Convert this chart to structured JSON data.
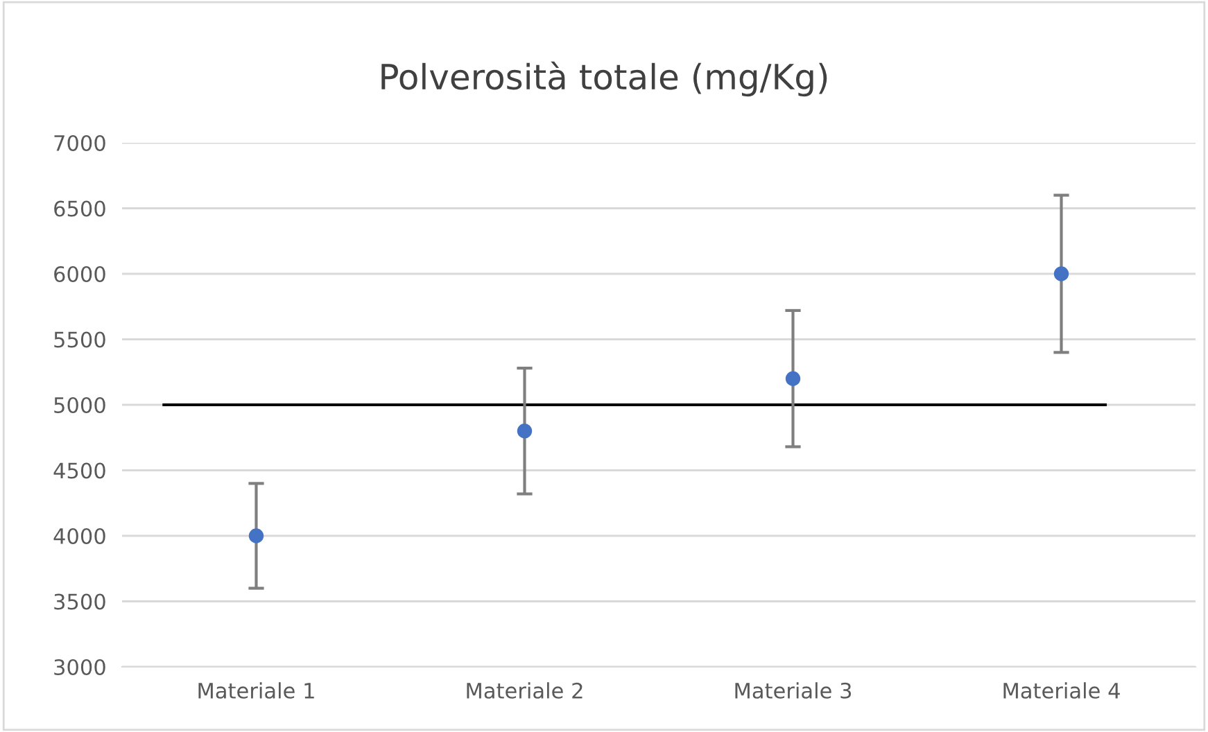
{
  "chart_data": {
    "type": "scatter",
    "title": "Polverosità totale (mg/Kg)",
    "categories": [
      "Materiale 1",
      "Materiale 2",
      "Materiale 3",
      "Materiale 4"
    ],
    "series": [
      {
        "color": "#4472c4",
        "values": [
          4000,
          4800,
          5200,
          6000
        ],
        "errors": [
          400,
          480,
          520,
          600
        ]
      }
    ],
    "ylim": [
      3000,
      7000
    ],
    "yticks": [
      3000,
      3500,
      4000,
      4500,
      5000,
      5500,
      6000,
      6500,
      7000
    ],
    "ref_lines": [
      {
        "axis": "y",
        "value": 5000,
        "color": "#000000",
        "line_style": "solid"
      }
    ],
    "grid": "y",
    "legend": false,
    "marker": "circle"
  }
}
